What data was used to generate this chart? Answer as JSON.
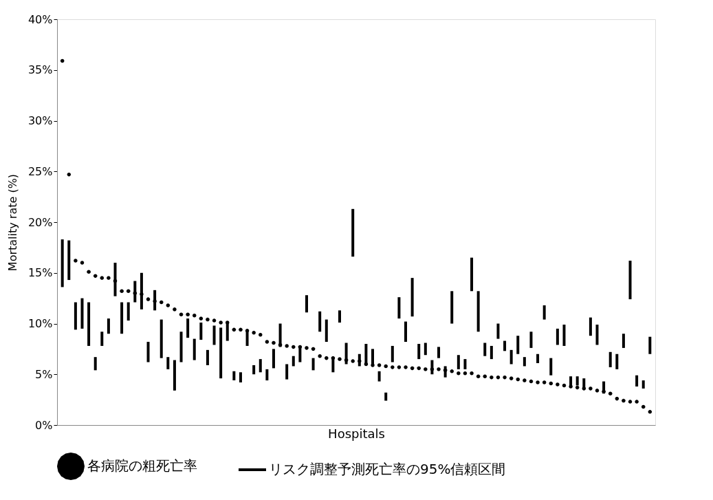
{
  "chart_data": {
    "type": "scatter",
    "xlabel": "Hospitals",
    "ylabel": "Mortality rate (%)",
    "categories": [
      null,
      null,
      null,
      null,
      null,
      null,
      null,
      null,
      null,
      null,
      null,
      null,
      null,
      null,
      null,
      null,
      null,
      null,
      null,
      null,
      null,
      null,
      null,
      null,
      null,
      null,
      null,
      null,
      null,
      null,
      null,
      null,
      null,
      null,
      null,
      null,
      null,
      null,
      null,
      null,
      null,
      null,
      null,
      null,
      null,
      null,
      null,
      null,
      null,
      null,
      null,
      null,
      null,
      null,
      null,
      null,
      null,
      null,
      null,
      null,
      null,
      null,
      null,
      null,
      null,
      null,
      null,
      null,
      null,
      null,
      null,
      null,
      null,
      null,
      null,
      null,
      null,
      null,
      null,
      null,
      null,
      null,
      null,
      null,
      null,
      null,
      null,
      null,
      null,
      null
    ],
    "ylim": [
      0,
      40
    ],
    "yticks": [
      {
        "value": 0,
        "label": "0%"
      },
      {
        "value": 5,
        "label": "5%"
      },
      {
        "value": 10,
        "label": "10%"
      },
      {
        "value": 15,
        "label": "15%"
      },
      {
        "value": 20,
        "label": "20%"
      },
      {
        "value": 25,
        "label": "25%"
      },
      {
        "value": 30,
        "label": "30%"
      },
      {
        "value": 35,
        "label": "35%"
      },
      {
        "value": 40,
        "label": "40%"
      }
    ],
    "tick_labels": "y",
    "grid": false,
    "legend": "bottom",
    "series": [
      {
        "name": "リスク調整予測死亡率の95%信頼区間",
        "type": "bar",
        "color": "#000000",
        "base": [
          13.6,
          14.3,
          9.4,
          9.5,
          7.8,
          5.4,
          7.8,
          9.0,
          12.7,
          9.0,
          10.3,
          12.1,
          11.4,
          6.2,
          11.3,
          6.6,
          5.5,
          3.4,
          6.2,
          8.6,
          6.4,
          8.4,
          5.9,
          7.9,
          4.6,
          8.3,
          4.4,
          4.2,
          7.8,
          5.0,
          5.2,
          4.4,
          5.6,
          7.7,
          4.5,
          5.8,
          6.2,
          11.1,
          5.4,
          9.2,
          8.2,
          5.2,
          10.1,
          6.0,
          16.6,
          5.8,
          6.0,
          5.8,
          4.3,
          2.4,
          6.2,
          10.5,
          8.2,
          10.7,
          6.5,
          6.9,
          5.0,
          6.6,
          4.7,
          10.0,
          5.5,
          5.5,
          13.2,
          9.2,
          6.8,
          6.5,
          8.5,
          7.3,
          6.0,
          7.0,
          5.8,
          7.6,
          6.1,
          10.4,
          4.9,
          7.9,
          7.8,
          3.7,
          3.9,
          3.5,
          8.8,
          7.9,
          3.1,
          5.7,
          5.5,
          7.6,
          12.4,
          3.8,
          3.6,
          7.0
        ],
        "values": [
          4.7,
          3.9,
          2.7,
          3.0,
          4.3,
          1.3,
          1.4,
          1.5,
          3.3,
          3.1,
          1.8,
          2.1,
          3.6,
          2.0,
          2.0,
          3.8,
          1.2,
          3.0,
          3.0,
          1.9,
          2.1,
          1.7,
          1.5,
          1.9,
          5.0,
          1.9,
          0.9,
          1.0,
          1.6,
          0.9,
          1.3,
          1.1,
          1.9,
          2.3,
          1.5,
          1.0,
          1.6,
          1.7,
          1.2,
          2.0,
          2.2,
          1.5,
          1.2,
          2.1,
          4.7,
          1.2,
          2.0,
          1.7,
          1.0,
          0.8,
          1.6,
          2.1,
          2.0,
          3.8,
          1.5,
          1.2,
          1.4,
          1.1,
          1.1,
          3.2,
          1.4,
          1.0,
          3.3,
          4.0,
          1.3,
          1.3,
          1.5,
          1.0,
          1.4,
          1.8,
          0.9,
          1.6,
          0.9,
          1.4,
          1.7,
          1.6,
          2.1,
          1.1,
          0.9,
          1.1,
          1.8,
          2.0,
          1.2,
          1.5,
          1.5,
          1.4,
          3.8,
          1.1,
          0.8,
          1.7
        ]
      },
      {
        "name": "各病院の粗死亡率",
        "color": "#000000",
        "values": [
          35.9,
          24.7,
          16.2,
          16.0,
          15.1,
          14.7,
          14.5,
          14.5,
          14.2,
          13.2,
          13.2,
          13.0,
          12.9,
          12.4,
          12.2,
          12.1,
          11.8,
          11.4,
          10.9,
          10.9,
          10.8,
          10.5,
          10.4,
          10.3,
          10.1,
          10.1,
          9.4,
          9.4,
          9.3,
          9.1,
          8.9,
          8.2,
          8.1,
          7.9,
          7.8,
          7.7,
          7.7,
          7.6,
          7.5,
          6.8,
          6.6,
          6.6,
          6.5,
          6.4,
          6.3,
          6.3,
          6.0,
          5.9,
          5.9,
          5.8,
          5.7,
          5.7,
          5.7,
          5.6,
          5.6,
          5.5,
          5.5,
          5.5,
          5.4,
          5.3,
          5.1,
          5.1,
          5.1,
          4.8,
          4.8,
          4.7,
          4.7,
          4.7,
          4.6,
          4.5,
          4.4,
          4.3,
          4.2,
          4.2,
          4.1,
          4.0,
          3.9,
          3.8,
          3.7,
          3.6,
          3.6,
          3.4,
          3.3,
          3.1,
          2.6,
          2.4,
          2.3,
          2.3,
          1.8,
          1.3
        ]
      }
    ]
  }
}
